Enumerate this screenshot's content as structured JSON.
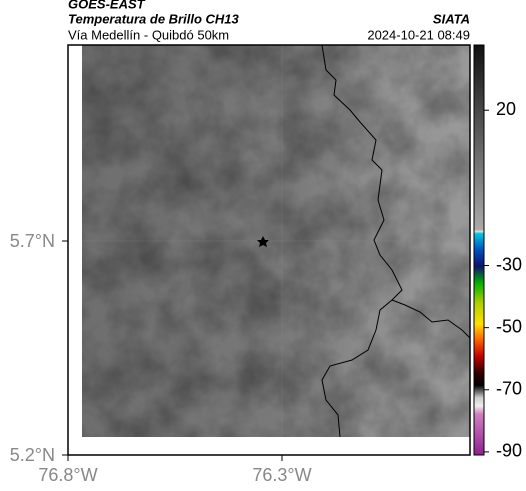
{
  "header": {
    "title": "GOES-EAST",
    "subtitle": "Temperatura de Brillo CH13",
    "source": "SIATA",
    "location": "Vía Medellín - Quibdó 50km",
    "timestamp": "2024-10-21 08:49"
  },
  "axes": {
    "lat_ticks": [
      "5.7°N",
      "5.2°N"
    ],
    "lon_ticks": [
      "76.8°W",
      "76.3°W"
    ]
  },
  "colorbar": {
    "range": [
      41,
      -91
    ],
    "ticks": [
      20,
      -30,
      -50,
      -70,
      -90
    ]
  }
}
